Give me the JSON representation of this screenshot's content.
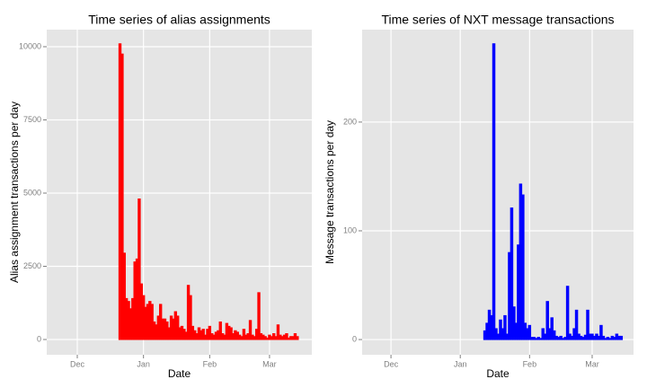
{
  "chart_data": [
    {
      "type": "bar",
      "title": "Time series of alias assignments",
      "xlabel": "Date",
      "ylabel": "Alias assignment transactions per day",
      "color": "#ff0000",
      "grid": true,
      "xlim": [
        -14.3,
        109.8
      ],
      "ylim": [
        -521,
        10583
      ],
      "xticks": [
        {
          "value": 0,
          "label": "Dec"
        },
        {
          "value": 31,
          "label": "Jan"
        },
        {
          "value": 62,
          "label": "Feb"
        },
        {
          "value": 90,
          "label": "Mar"
        }
      ],
      "yticks": [
        0,
        2500,
        5000,
        7500,
        10000
      ],
      "x": [
        -8,
        -7,
        -6,
        -5,
        -4,
        -3,
        -2,
        -1,
        0,
        1,
        2,
        3,
        4,
        5,
        6,
        7,
        8,
        9,
        10,
        11,
        12,
        13,
        14,
        15,
        16,
        17,
        18,
        19,
        20,
        21,
        22,
        23,
        24,
        25,
        26,
        27,
        28,
        29,
        30,
        31,
        32,
        33,
        34,
        35,
        36,
        37,
        38,
        39,
        40,
        41,
        42,
        43,
        44,
        45,
        46,
        47,
        48,
        49,
        50,
        51,
        52,
        53,
        54,
        55,
        56,
        57,
        58,
        59,
        60,
        61,
        62,
        63,
        64,
        65,
        66,
        67,
        68,
        69,
        70,
        71,
        72,
        73,
        74,
        75,
        76,
        77,
        78,
        79,
        80,
        81,
        82,
        83,
        84,
        85,
        86,
        87,
        88,
        89,
        90,
        91,
        92,
        93,
        94,
        95,
        96,
        97,
        98,
        99,
        100,
        101,
        102,
        103
      ],
      "values": [
        0,
        0,
        0,
        0,
        0,
        0,
        0,
        0,
        0,
        0,
        0,
        0,
        0,
        0,
        0,
        0,
        0,
        0,
        0,
        0,
        0,
        0,
        0,
        0,
        0,
        0,
        0,
        0,
        10100,
        9750,
        2950,
        1400,
        1300,
        1050,
        1400,
        2650,
        2750,
        4800,
        1900,
        1500,
        1100,
        1200,
        1300,
        1200,
        600,
        500,
        800,
        1200,
        700,
        700,
        600,
        400,
        800,
        700,
        950,
        800,
        400,
        450,
        350,
        250,
        1850,
        1500,
        450,
        300,
        200,
        400,
        300,
        350,
        150,
        350,
        450,
        200,
        150,
        250,
        300,
        600,
        200,
        150,
        550,
        450,
        400,
        200,
        300,
        250,
        150,
        100,
        350,
        150,
        200,
        650,
        150,
        100,
        350,
        1600,
        200,
        150,
        100,
        50,
        150,
        100,
        200,
        100,
        500,
        150,
        100,
        150,
        200,
        50,
        100,
        100,
        200,
        100
      ]
    },
    {
      "type": "bar",
      "title": "Time series of NXT message transactions",
      "xlabel": "Date",
      "ylabel": "Message transactions per day",
      "color": "#0000ff",
      "grid": true,
      "xlim": [
        -12.9,
        108.5
      ],
      "ylim": [
        -14,
        285
      ],
      "xticks": [
        {
          "value": 0,
          "label": "Dec"
        },
        {
          "value": 31,
          "label": "Jan"
        },
        {
          "value": 62,
          "label": "Feb"
        },
        {
          "value": 90,
          "label": "Mar"
        }
      ],
      "yticks": [
        0,
        100,
        200
      ],
      "x": [
        -6,
        -5,
        -4,
        -3,
        -2,
        -1,
        0,
        1,
        2,
        3,
        4,
        5,
        6,
        7,
        8,
        9,
        10,
        11,
        12,
        13,
        14,
        15,
        16,
        17,
        18,
        19,
        20,
        21,
        22,
        23,
        24,
        25,
        26,
        27,
        28,
        29,
        30,
        31,
        32,
        33,
        34,
        35,
        36,
        37,
        38,
        39,
        40,
        41,
        42,
        43,
        44,
        45,
        46,
        47,
        48,
        49,
        50,
        51,
        52,
        53,
        54,
        55,
        56,
        57,
        58,
        59,
        60,
        61,
        62,
        63,
        64,
        65,
        66,
        67,
        68,
        69,
        70,
        71,
        72,
        73,
        74,
        75,
        76,
        77,
        78,
        79,
        80,
        81,
        82,
        83,
        84,
        85,
        86,
        87,
        88,
        89,
        90,
        91,
        92,
        93,
        94,
        95,
        96,
        97,
        98,
        99,
        100,
        101,
        102,
        103
      ],
      "values": [
        0,
        0,
        0,
        0,
        0,
        0,
        0,
        0,
        0,
        0,
        0,
        0,
        0,
        0,
        0,
        0,
        0,
        0,
        0,
        0,
        0,
        0,
        0,
        0,
        0,
        0,
        0,
        0,
        0,
        0,
        0,
        0,
        0,
        0,
        0,
        0,
        0,
        0,
        0,
        0,
        0,
        0,
        0,
        0,
        0,
        0,
        0,
        0,
        8,
        15,
        27,
        22,
        272,
        10,
        5,
        18,
        10,
        22,
        5,
        80,
        121,
        30,
        15,
        87,
        143,
        133,
        15,
        10,
        13,
        2,
        2,
        1,
        2,
        1,
        10,
        5,
        35,
        10,
        20,
        8,
        3,
        2,
        3,
        1,
        2,
        49,
        5,
        3,
        10,
        27,
        5,
        3,
        2,
        4,
        27,
        5,
        5,
        3,
        5,
        3,
        13,
        3,
        1,
        2,
        1,
        3,
        2,
        5,
        3,
        3
      ]
    }
  ]
}
